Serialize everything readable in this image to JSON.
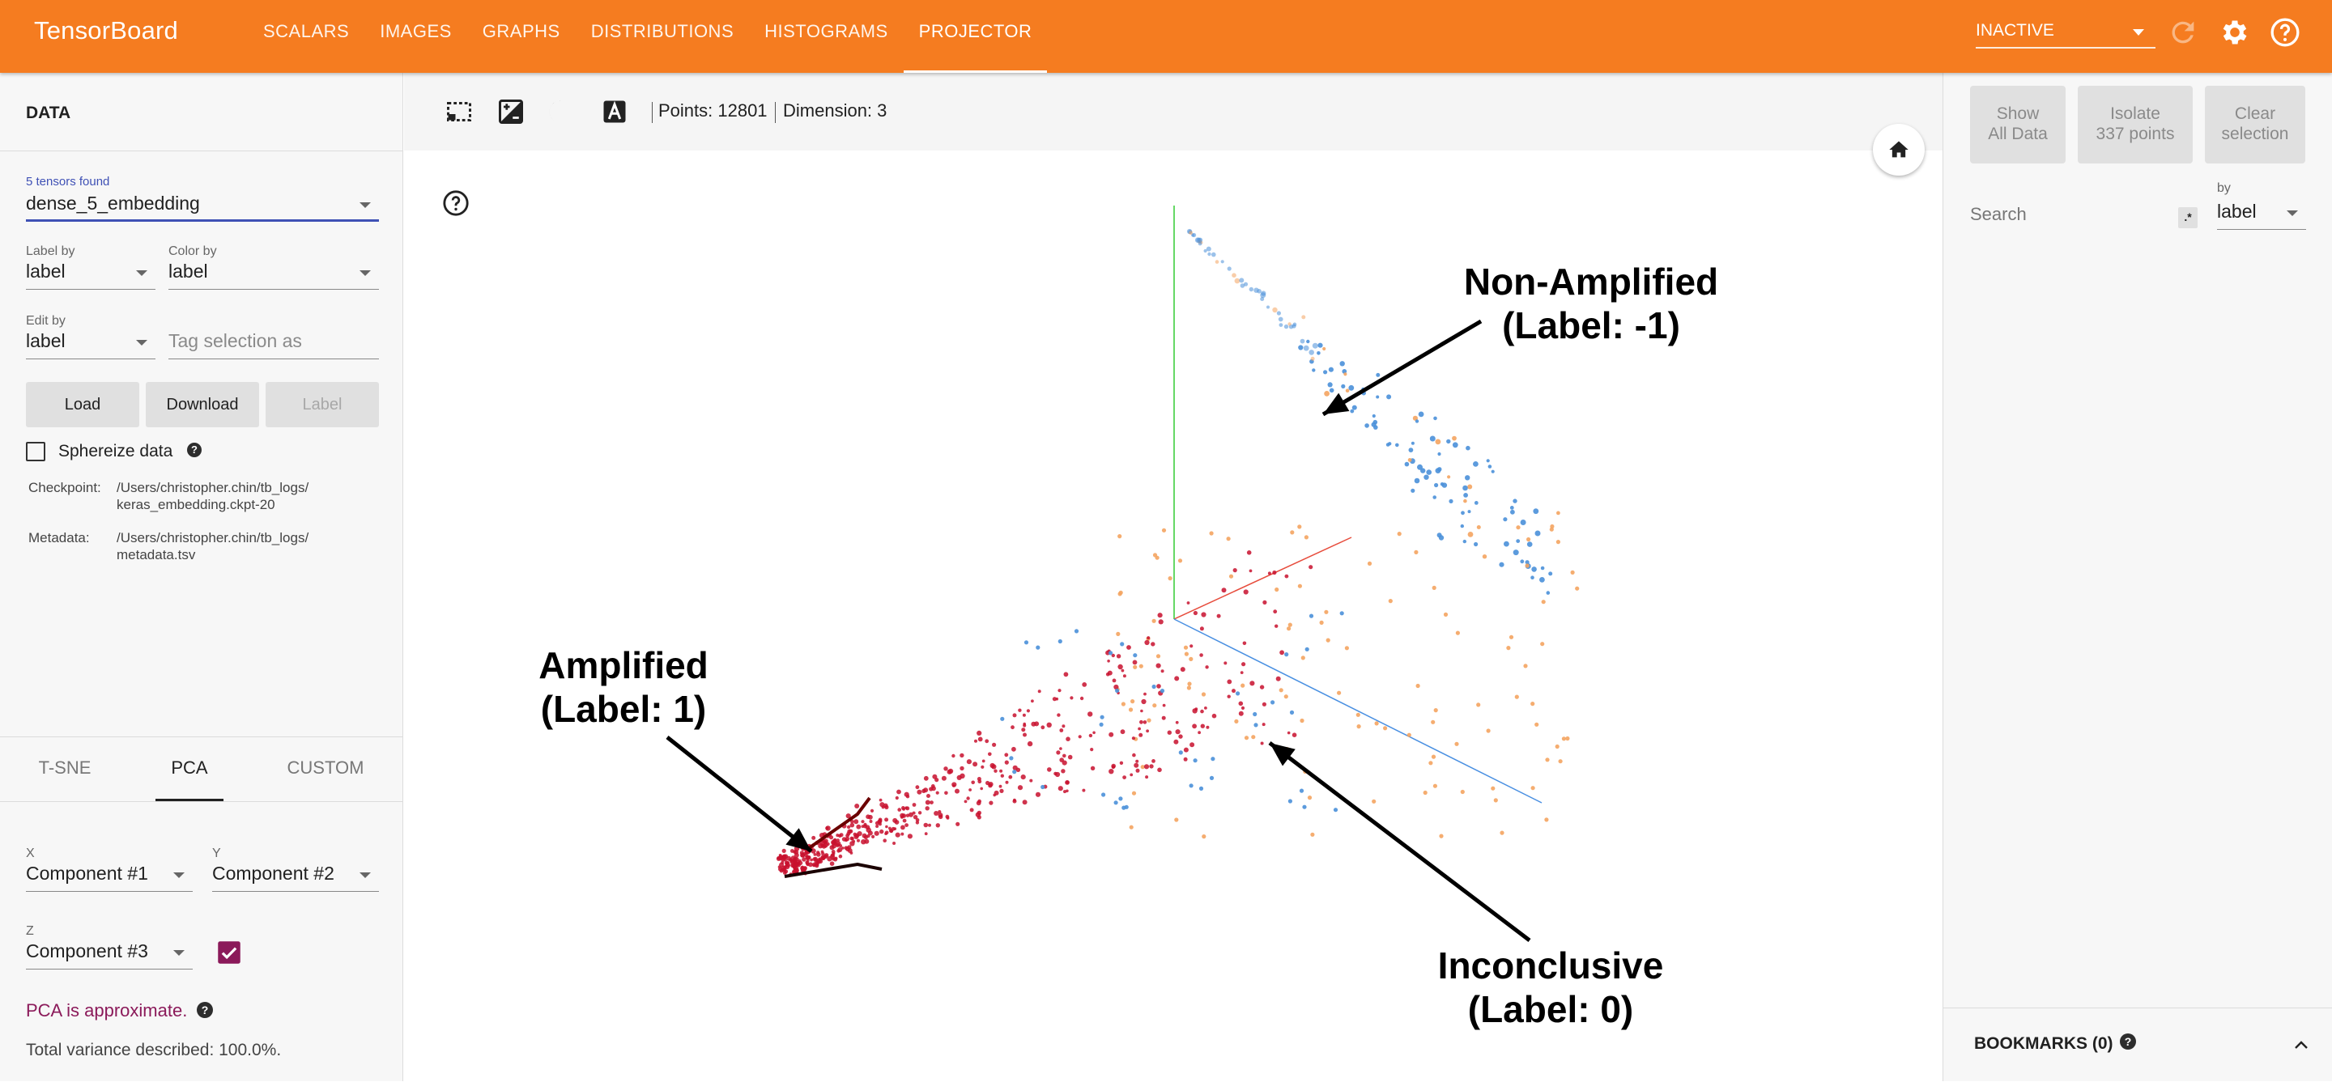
{
  "app": {
    "title": "TensorBoard",
    "nav_tabs": [
      "SCALARS",
      "IMAGES",
      "GRAPHS",
      "DISTRIBUTIONS",
      "HISTOGRAMS",
      "PROJECTOR"
    ],
    "active_tab": "PROJECTOR",
    "run_status": "INACTIVE",
    "accent_color": "#f57c20"
  },
  "data_panel": {
    "title": "DATA",
    "tensors_found": "5 tensors found",
    "tensor": "dense_5_embedding",
    "label_by_label": "Label by",
    "label_by": "label",
    "color_by_label": "Color by",
    "color_by": "label",
    "edit_by_label": "Edit by",
    "edit_by": "label",
    "tag_placeholder": "Tag selection as",
    "load": "Load",
    "download": "Download",
    "label_button": "Label",
    "sphereize": "Sphereize data",
    "checkpoint_key": "Checkpoint:",
    "checkpoint_line1": "/Users/christopher.chin/tb_logs/",
    "checkpoint_line2": "keras_embedding.ckpt-20",
    "metadata_key": "Metadata:",
    "metadata_line1": "/Users/christopher.chin/tb_logs/",
    "metadata_line2": "metadata.tsv"
  },
  "projection": {
    "tabs": [
      "T-SNE",
      "PCA",
      "CUSTOM"
    ],
    "active": "PCA",
    "x_label": "X",
    "x": "Component #1",
    "y_label": "Y",
    "y": "Component #2",
    "z_label": "Z",
    "z": "Component #3",
    "z_enabled": true,
    "approx": "PCA is approximate.",
    "variance": "Total variance described: 100.0%."
  },
  "toolbar": {
    "points": "Points: 12801",
    "dimension": "Dimension: 3"
  },
  "annotations": {
    "non_amplified_1": "Non-Amplified",
    "non_amplified_2": "(Label: -1)",
    "amplified_1": "Amplified",
    "amplified_2": "(Label: 1)",
    "inconclusive_1": "Inconclusive",
    "inconclusive_2": "(Label: 0)"
  },
  "right_panel": {
    "show_all_1": "Show",
    "show_all_2": "All Data",
    "isolate_1": "Isolate",
    "isolate_2": "337 points",
    "clear_1": "Clear",
    "clear_2": "selection",
    "search_placeholder": "Search",
    "regex_glyph": ".*",
    "by_label": "by",
    "by_value": "label",
    "bookmarks": "BOOKMARKS (0)"
  },
  "colors": {
    "amplified": "#c8102e",
    "inconclusive": "#f4a460",
    "non_amplified": "#4a90d9",
    "axis_x": "#e74c3c",
    "axis_y": "#33cc33",
    "axis_z": "#4a90e2"
  }
}
